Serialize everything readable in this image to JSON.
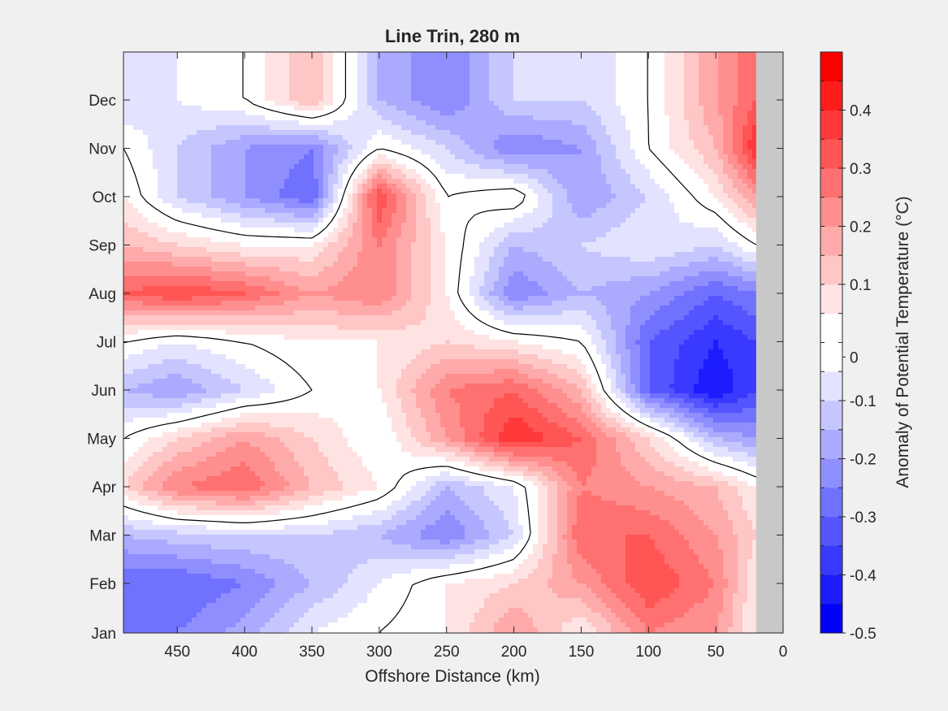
{
  "chart_data": {
    "type": "heatmap",
    "subtype": "filled-contour",
    "title": "Line Trin, 280 m",
    "xlabel": "Offshore Distance (km)",
    "ylabel": "",
    "x_reversed": true,
    "xlim": [
      490,
      0
    ],
    "x_ticks": [
      450,
      400,
      350,
      300,
      250,
      200,
      150,
      100,
      50,
      0
    ],
    "y_ticks": [
      "Jan",
      "Feb",
      "Mar",
      "Apr",
      "May",
      "Jun",
      "Jul",
      "Aug",
      "Sep",
      "Oct",
      "Nov",
      "Dec"
    ],
    "colorbar": {
      "label": "Anomaly of Potential Temperature (°C)",
      "min": -0.5,
      "max": 0.5,
      "step": 0.05,
      "ticks": [
        "0.4",
        "0.3",
        "0.2",
        "0.1",
        "0",
        "-0.1",
        "-0.2",
        "-0.3",
        "-0.4",
        "-0.5"
      ],
      "colormap": "blue-white-red"
    },
    "zero_contour": true,
    "no_data_color": "#c8c8c8",
    "no_data_x_range": [
      20,
      0
    ],
    "grid_x_km": [
      490,
      450,
      400,
      350,
      300,
      250,
      200,
      150,
      100,
      50,
      20
    ],
    "grid_month": [
      "Jan",
      "Feb",
      "Mar",
      "Apr",
      "May",
      "Jun",
      "Jul",
      "Aug",
      "Sep",
      "Oct",
      "Nov",
      "Dec"
    ],
    "z": [
      [
        -0.3,
        -0.25,
        -0.18,
        -0.05,
        0.0,
        0.05,
        0.2,
        0.05,
        0.25,
        0.2,
        0.05
      ],
      [
        -0.3,
        -0.3,
        -0.25,
        -0.15,
        -0.05,
        0.05,
        0.1,
        0.2,
        0.35,
        0.25,
        0.05
      ],
      [
        -0.15,
        -0.12,
        -0.1,
        -0.1,
        -0.15,
        -0.25,
        -0.1,
        0.3,
        0.3,
        0.2,
        0.1
      ],
      [
        0.1,
        0.25,
        0.3,
        0.15,
        0.05,
        -0.15,
        -0.05,
        0.25,
        0.2,
        0.15,
        0.05
      ],
      [
        0.0,
        0.1,
        0.2,
        0.1,
        0.0,
        0.2,
        0.4,
        0.3,
        0.1,
        -0.15,
        -0.2
      ],
      [
        -0.15,
        -0.2,
        -0.1,
        0.0,
        0.05,
        0.25,
        0.3,
        0.15,
        -0.3,
        -0.45,
        -0.35
      ],
      [
        0.0,
        -0.05,
        0.0,
        0.05,
        0.05,
        0.1,
        0.05,
        0.0,
        -0.3,
        -0.4,
        -0.35
      ],
      [
        0.3,
        0.35,
        0.3,
        0.2,
        0.25,
        0.05,
        -0.25,
        -0.15,
        -0.2,
        -0.3,
        -0.25
      ],
      [
        0.15,
        0.1,
        0.05,
        0.05,
        0.25,
        0.05,
        -0.15,
        -0.1,
        -0.05,
        -0.1,
        0.0
      ],
      [
        0.05,
        -0.1,
        -0.2,
        -0.3,
        0.35,
        0.0,
        0.05,
        -0.2,
        -0.1,
        0.05,
        0.2
      ],
      [
        0.0,
        -0.1,
        -0.2,
        -0.25,
        0.0,
        -0.1,
        -0.25,
        -0.2,
        0.0,
        0.15,
        0.4
      ],
      [
        -0.1,
        -0.05,
        0.0,
        0.15,
        -0.15,
        -0.25,
        -0.1,
        -0.1,
        0.0,
        0.2,
        0.3
      ]
    ]
  }
}
